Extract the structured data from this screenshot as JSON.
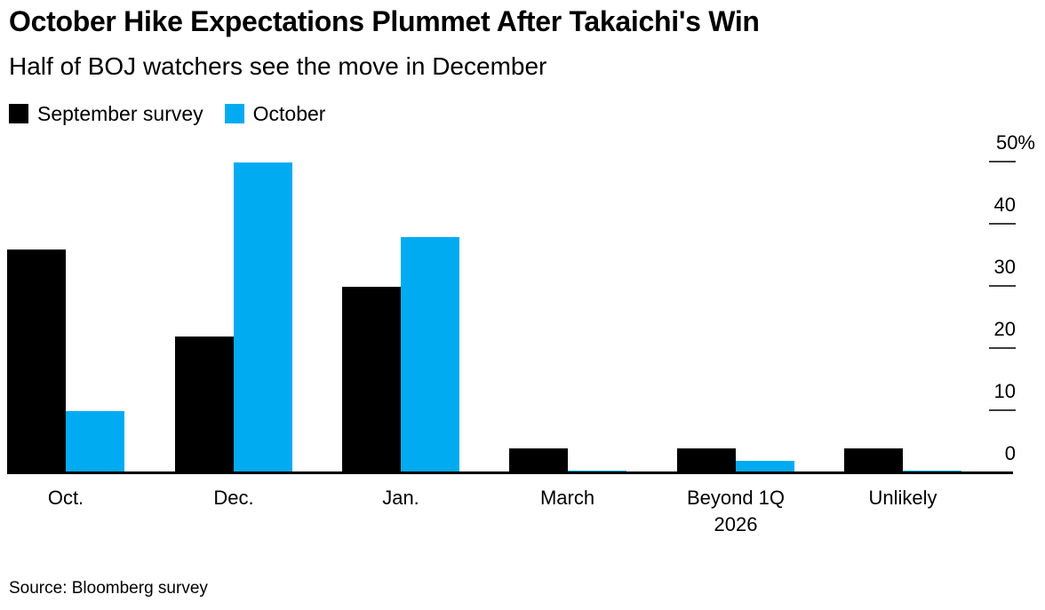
{
  "header": {
    "title": "October Hike Expectations Plummet After Takaichi's Win",
    "subtitle": "Half of BOJ watchers see the move in December"
  },
  "legend": {
    "items": [
      {
        "label": "September survey",
        "color": "#000000"
      },
      {
        "label": "October",
        "color": "#00ABF2"
      }
    ]
  },
  "source": "Source: Bloomberg survey",
  "chart_data": {
    "type": "bar",
    "title": "October Hike Expectations Plummet After Takaichi's Win",
    "subtitle": "Half of BOJ watchers see the move in December",
    "categories": [
      "Oct.",
      "Dec.",
      "Jan.",
      "March",
      "Beyond 1Q 2026",
      "Unlikely"
    ],
    "series": [
      {
        "name": "September survey",
        "color": "#000000",
        "values": [
          36,
          22,
          30,
          4,
          4,
          4
        ]
      },
      {
        "name": "October",
        "color": "#00ABF2",
        "values": [
          10,
          50,
          38,
          0,
          2,
          0
        ]
      }
    ],
    "unit": "%",
    "ylim": [
      0,
      50
    ],
    "yticks": [
      50,
      40,
      30,
      20,
      10,
      0
    ],
    "ytick_labels": [
      "50%",
      "40",
      "30",
      "20",
      "10",
      "0"
    ],
    "y_axis_side": "right",
    "grid": false,
    "legend_position": "top-left"
  }
}
